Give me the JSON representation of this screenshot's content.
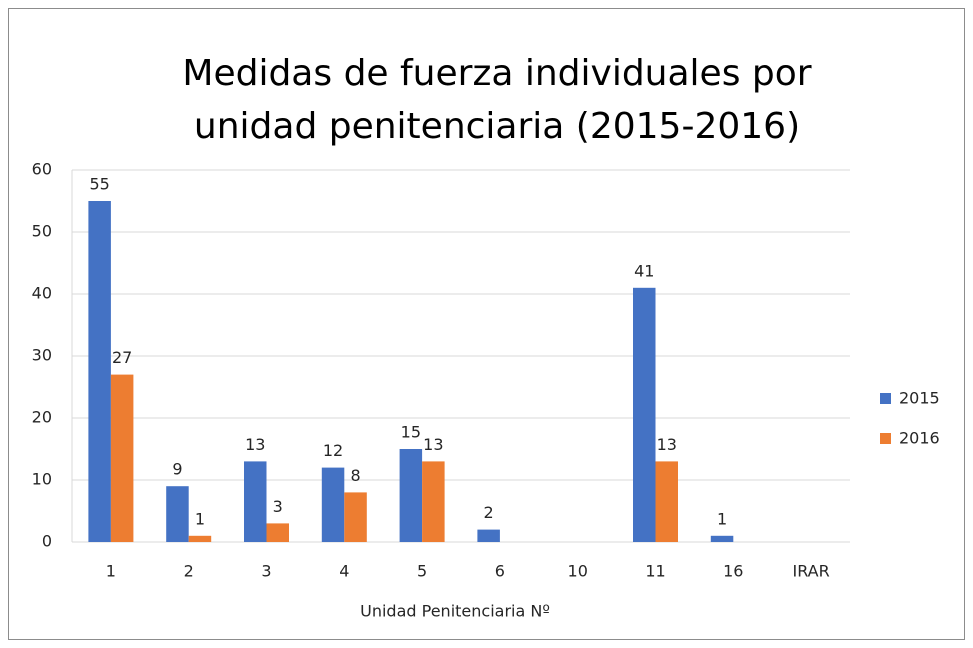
{
  "chart_data": {
    "type": "bar",
    "title": "Medidas de fuerza individuales por unidad penitenciaria (2015-2016)",
    "x_label": "Unidad Penitenciaria Nº",
    "categories": [
      "1",
      "2",
      "3",
      "4",
      "5",
      "6",
      "10",
      "11",
      "16",
      "IRAR"
    ],
    "series": [
      {
        "name": "2015",
        "color": "#4472c4",
        "values": [
          55,
          9,
          13,
          12,
          15,
          2,
          null,
          41,
          1,
          null
        ]
      },
      {
        "name": "2016",
        "color": "#ed7d31",
        "values": [
          27,
          1,
          3,
          8,
          13,
          null,
          null,
          13,
          null,
          null
        ]
      }
    ],
    "ylim": [
      0,
      60
    ],
    "yticks": [
      0,
      10,
      20,
      30,
      40,
      50,
      60
    ],
    "grid": true,
    "legend": "right"
  }
}
